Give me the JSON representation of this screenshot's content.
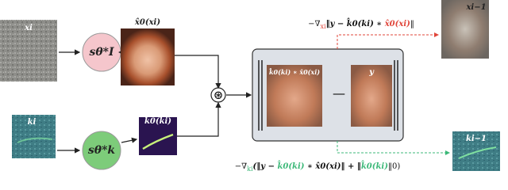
{
  "nodes": {
    "noisy_image": {
      "label": "xi"
    },
    "image_score": {
      "label": "sθ*I"
    },
    "image_estimate": {
      "label": "x̂0(xi)"
    },
    "noisy_kernel": {
      "label": "ki"
    },
    "kernel_score": {
      "label": "sθ*k"
    },
    "kernel_estimate": {
      "label": "k̂0(ki)"
    },
    "convolution": {
      "label": "⊛"
    },
    "blurred_estimate": {
      "label": "k̂0(ki) ∗ x̂0(xi)"
    },
    "observation": {
      "label": "y"
    },
    "minus": {
      "label": "—"
    },
    "next_image": {
      "label": "xi−1"
    },
    "next_kernel": {
      "label": "ki−1"
    }
  },
  "formulas": {
    "image_gradient": [
      "−∇",
      "xi",
      "‖y − k̂0(ki) ∗ ",
      "x̂0(xi)",
      "‖"
    ],
    "kernel_gradient": [
      "−∇",
      "ki",
      "(‖y − ",
      "k̂0(ki)",
      " ∗ x̂0(xi)‖ + ‖",
      "k̂0(ki)",
      "‖0)"
    ]
  }
}
